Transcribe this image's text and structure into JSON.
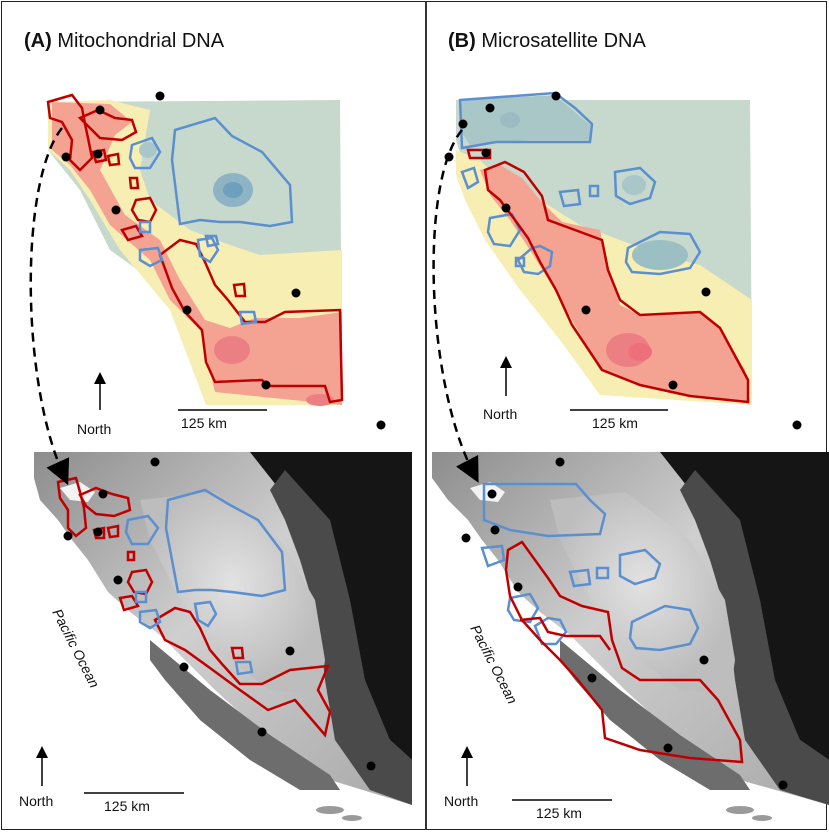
{
  "panels": [
    {
      "letter": "(A)",
      "title": "Mitochondrial DNA",
      "north_label_top": "North",
      "scale_label_top": "125 km",
      "north_label_bottom": "North",
      "scale_label_bottom": "125 km",
      "ocean_label": "Pacific Ocean"
    },
    {
      "letter": "(B)",
      "title": "Microsatellite DNA",
      "north_label_top": "North",
      "scale_label_top": "125 km",
      "north_label_bottom": "North",
      "scale_label_bottom": "125 km",
      "ocean_label": "Pacific Ocean"
    }
  ],
  "colors": {
    "high_region": "#c00000",
    "low_region": "#5b8fd0",
    "surface_high": "#f08a80",
    "surface_mid": "#fbeea8",
    "surface_low": "#bfd3cc",
    "sample_point": "#000000"
  }
}
